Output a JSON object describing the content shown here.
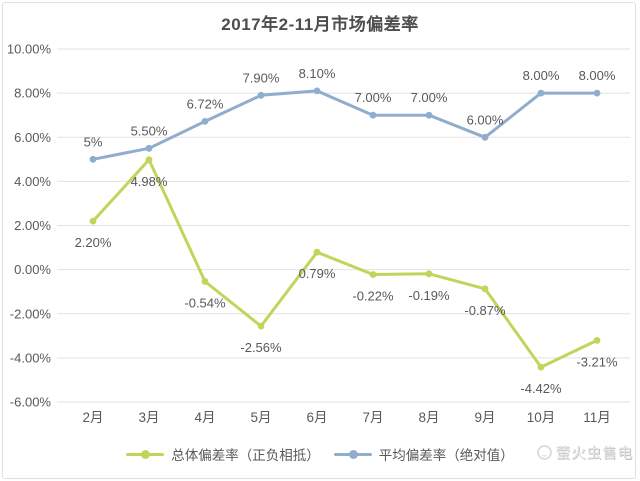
{
  "chart_data": {
    "type": "line",
    "title": "2017年2-11月市场偏差率",
    "categories": [
      "2月",
      "3月",
      "4月",
      "5月",
      "6月",
      "7月",
      "8月",
      "9月",
      "10月",
      "11月"
    ],
    "series": [
      {
        "key": "overall",
        "name": "总体偏差率（正负相抵）",
        "color": "#c3d45a",
        "label_position": "below",
        "values": [
          2.2,
          4.98,
          -0.54,
          -2.56,
          0.79,
          -0.22,
          -0.19,
          -0.87,
          -4.42,
          -3.21
        ],
        "labels": [
          "2.20%",
          "4.98%",
          "-0.54%",
          "-2.56%",
          "0.79%",
          "-0.22%",
          "-0.19%",
          "-0.87%",
          "-4.42%",
          "-3.21%"
        ]
      },
      {
        "key": "average",
        "name": "平均偏差率（绝对值）",
        "color": "#8fadcc",
        "label_position": "above",
        "values": [
          5.0,
          5.5,
          6.72,
          7.9,
          8.1,
          7.0,
          7.0,
          6.0,
          8.0,
          8.0
        ],
        "labels": [
          "5%",
          "5.50%",
          "6.72%",
          "7.90%",
          "8.10%",
          "7.00%",
          "7.00%",
          "6.00%",
          "8.00%",
          "8.00%"
        ]
      }
    ],
    "y_axis": {
      "min": -6,
      "max": 10,
      "step": 2,
      "tick_labels": [
        "10.00%",
        "8.00%",
        "6.00%",
        "4.00%",
        "2.00%",
        "0.00%",
        "-2.00%",
        "-4.00%",
        "-6.00%"
      ]
    },
    "grid": true,
    "legend_position": "bottom"
  },
  "watermark": {
    "text": "萤火虫售电"
  },
  "colors": {
    "grid": "#e2e2e2",
    "axis_text": "#595959",
    "data_label_text": "#595959",
    "title_text": "#4d4d4d",
    "card_border": "#e0e0e0",
    "watermark_text": "#e6e6e6"
  }
}
